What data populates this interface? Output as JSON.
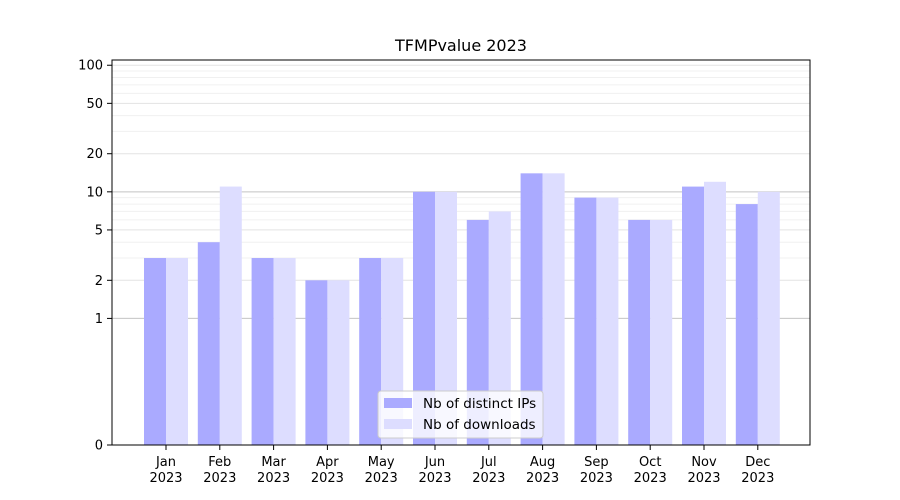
{
  "chart_data": {
    "type": "bar",
    "title": "TFMPvalue 2023",
    "xlabel": "",
    "ylabel": "",
    "yscale": "symlog",
    "ylim": [
      0,
      110
    ],
    "yticks": [
      0,
      1,
      2,
      5,
      10,
      20,
      50,
      100
    ],
    "categories": [
      "Jan\n2023",
      "Feb\n2023",
      "Mar\n2023",
      "Apr\n2023",
      "May\n2023",
      "Jun\n2023",
      "Jul\n2023",
      "Aug\n2023",
      "Sep\n2023",
      "Oct\n2023",
      "Nov\n2023",
      "Dec\n2023"
    ],
    "series": [
      {
        "name": "Nb of distinct IPs",
        "color": "#aaaaff",
        "values": [
          3,
          4,
          3,
          2,
          3,
          10,
          6,
          14,
          9,
          6,
          11,
          8
        ]
      },
      {
        "name": "Nb of downloads",
        "color": "#ddddff",
        "values": [
          3,
          11,
          3,
          2,
          3,
          10,
          7,
          14,
          9,
          6,
          12,
          10
        ]
      }
    ],
    "grid": true,
    "legend": "bottom-center"
  }
}
